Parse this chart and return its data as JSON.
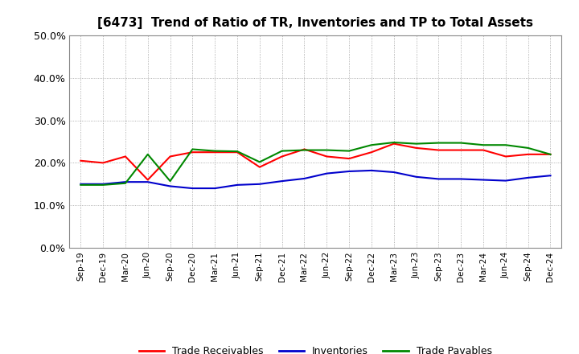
{
  "title": "[6473]  Trend of Ratio of TR, Inventories and TP to Total Assets",
  "x_labels": [
    "Sep-19",
    "Dec-19",
    "Mar-20",
    "Jun-20",
    "Sep-20",
    "Dec-20",
    "Mar-21",
    "Jun-21",
    "Sep-21",
    "Dec-21",
    "Mar-22",
    "Jun-22",
    "Sep-22",
    "Dec-22",
    "Mar-23",
    "Jun-23",
    "Sep-23",
    "Dec-23",
    "Mar-24",
    "Jun-24",
    "Sep-24",
    "Dec-24"
  ],
  "trade_receivables": [
    0.205,
    0.2,
    0.215,
    0.16,
    0.215,
    0.225,
    0.225,
    0.225,
    0.19,
    0.215,
    0.232,
    0.215,
    0.21,
    0.225,
    0.245,
    0.235,
    0.23,
    0.23,
    0.23,
    0.215,
    0.22,
    0.22
  ],
  "inventories": [
    0.15,
    0.15,
    0.155,
    0.155,
    0.145,
    0.14,
    0.14,
    0.148,
    0.15,
    0.157,
    0.163,
    0.175,
    0.18,
    0.182,
    0.178,
    0.167,
    0.162,
    0.162,
    0.16,
    0.158,
    0.165,
    0.17
  ],
  "trade_payables": [
    0.148,
    0.148,
    0.152,
    0.22,
    0.157,
    0.232,
    0.228,
    0.227,
    0.202,
    0.228,
    0.23,
    0.23,
    0.228,
    0.242,
    0.248,
    0.245,
    0.247,
    0.247,
    0.242,
    0.242,
    0.235,
    0.22
  ],
  "ylim": [
    0.0,
    0.5
  ],
  "yticks": [
    0.0,
    0.1,
    0.2,
    0.3,
    0.4,
    0.5
  ],
  "colors": {
    "trade_receivables": "#ff0000",
    "inventories": "#0000cc",
    "trade_payables": "#008800"
  },
  "background_color": "#ffffff",
  "grid_color": "#999999",
  "legend_labels": [
    "Trade Receivables",
    "Inventories",
    "Trade Payables"
  ]
}
